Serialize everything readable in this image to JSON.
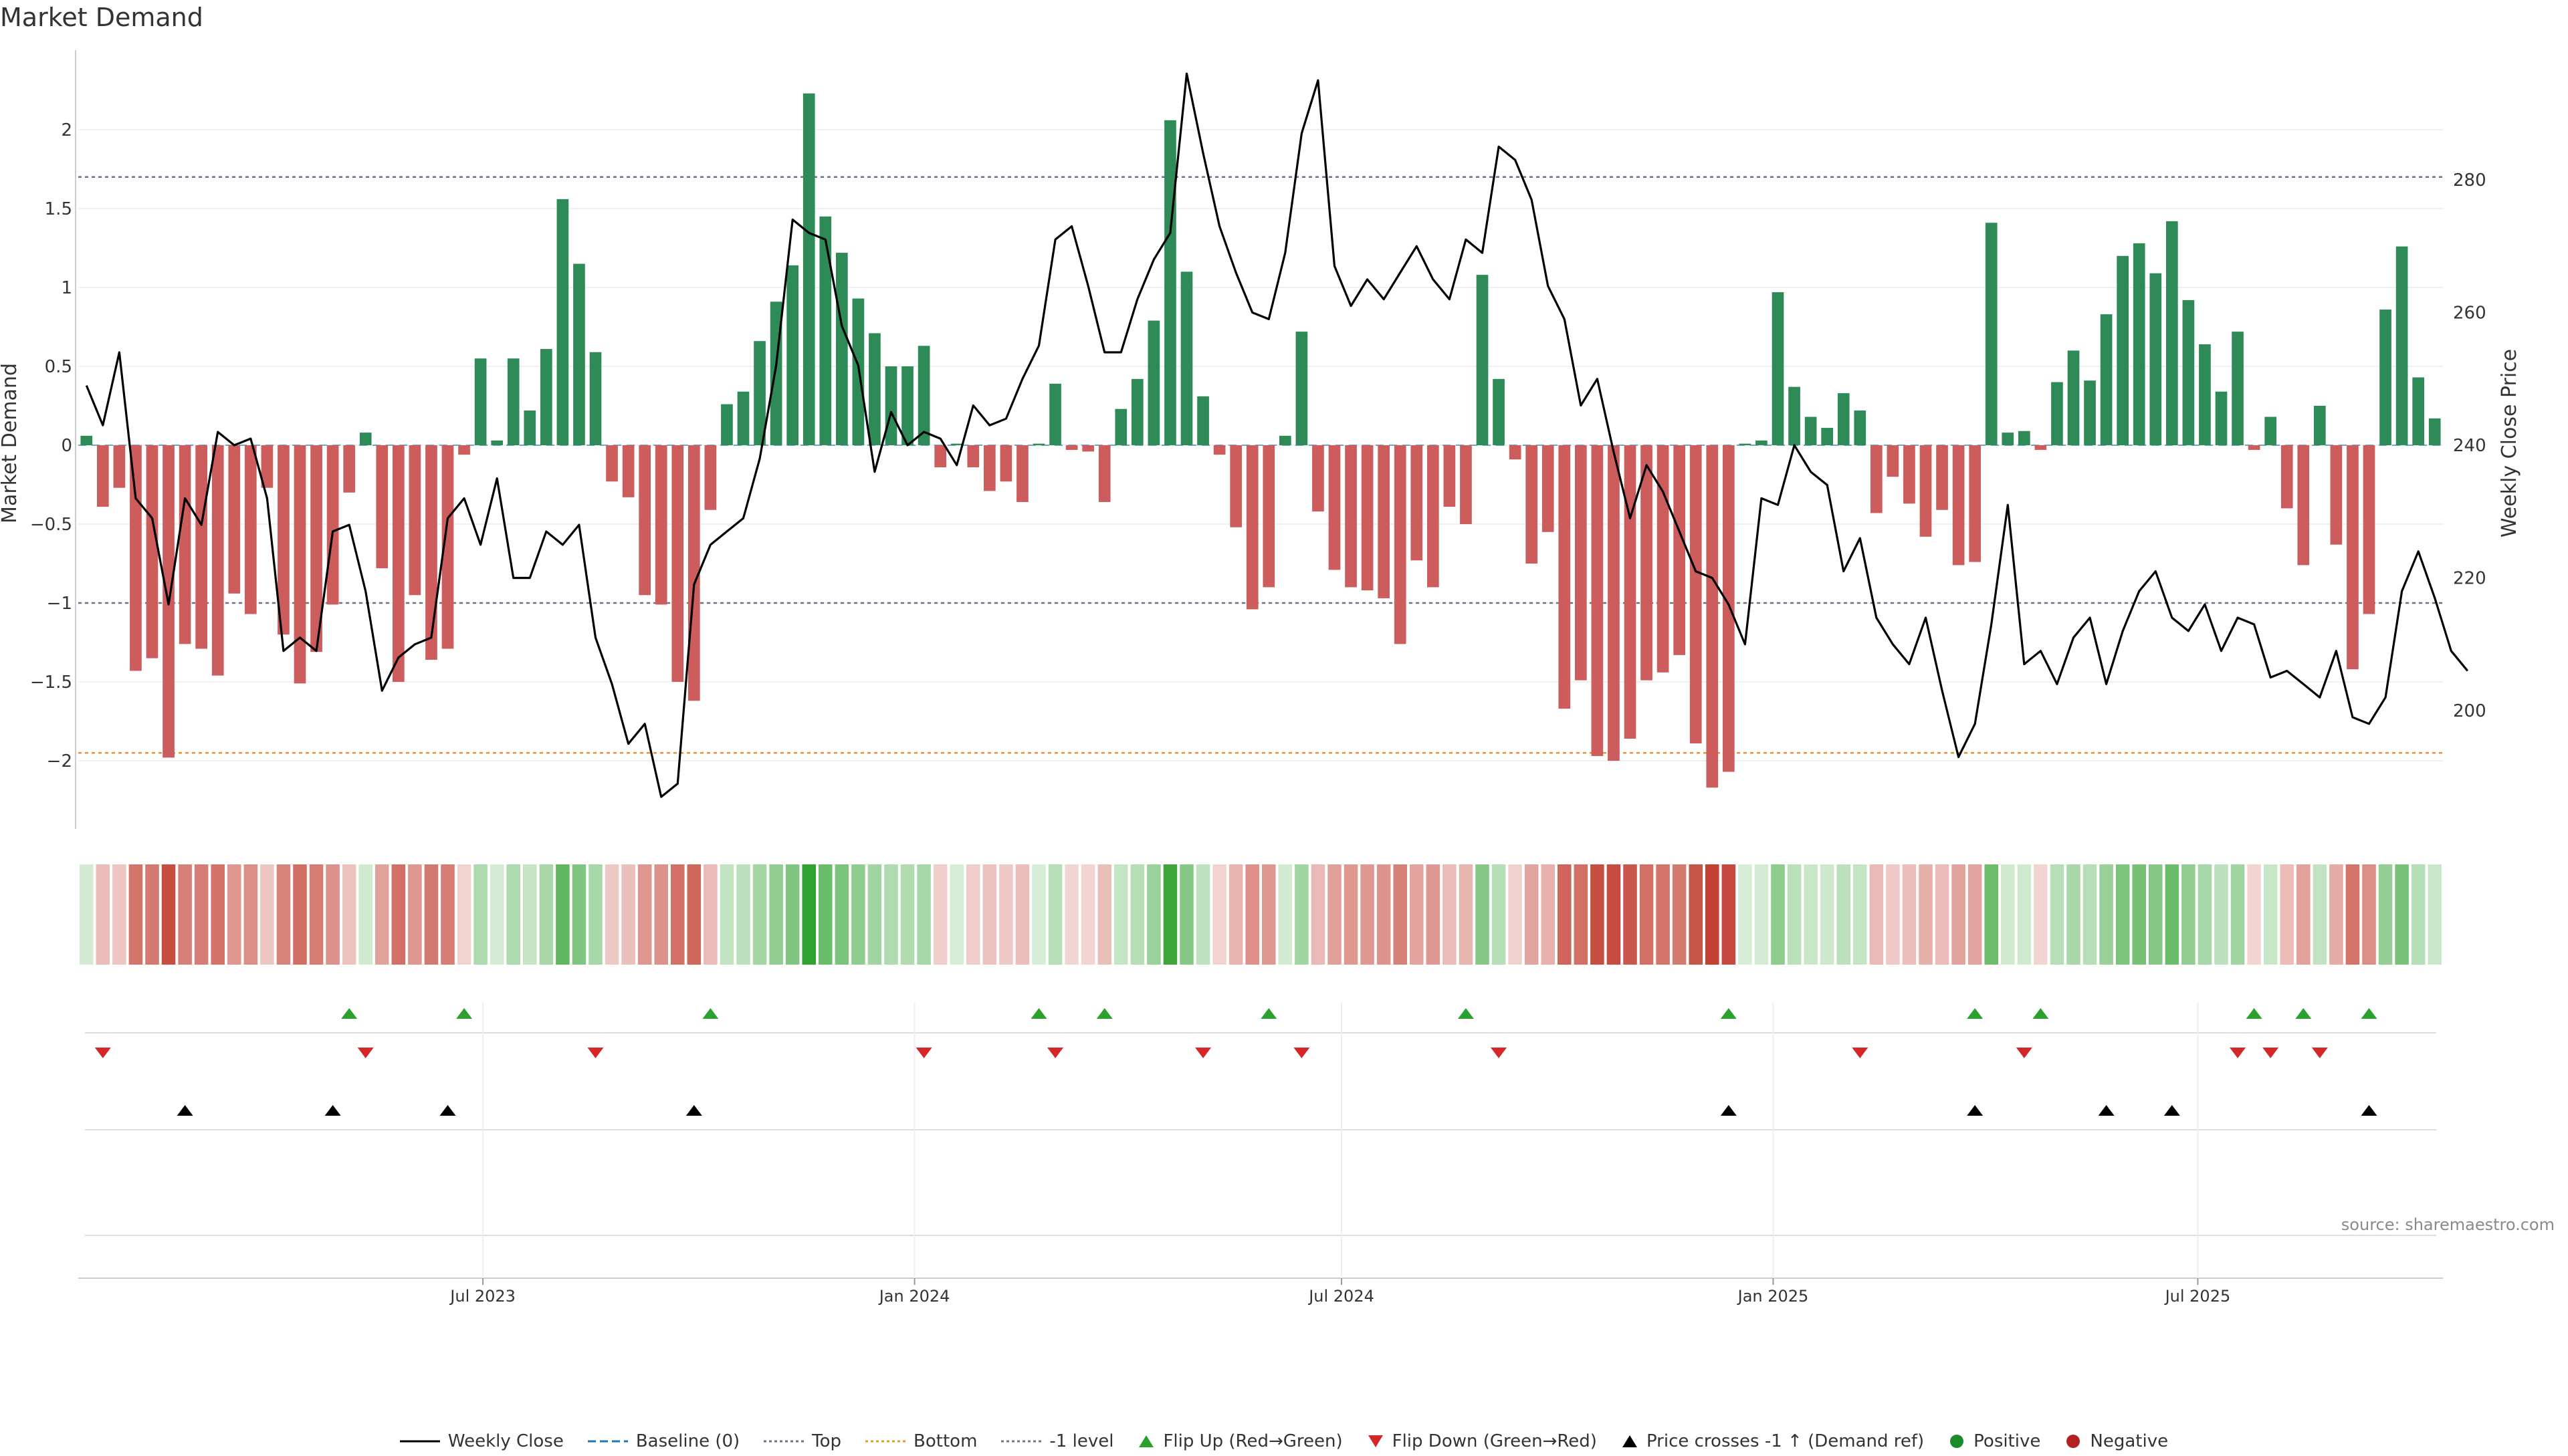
{
  "title": "Market Demand",
  "source": "source: sharemaestro.com",
  "colors": {
    "positive": "#2e8b57",
    "negative": "#cd5c5c",
    "line": "#000000",
    "top": "#6c6f8e",
    "bottom": "#e69532",
    "minus1": "#6c6f8e",
    "flip_up": "#2ca02c",
    "flip_down": "#d62728",
    "cross": "#000000"
  },
  "legend": [
    {
      "label": "Weekly Close",
      "kind": "line-solid",
      "color": "#000000"
    },
    {
      "label": "Baseline (0)",
      "kind": "line-dash",
      "color": "#1f77b4"
    },
    {
      "label": "Top",
      "kind": "line-dot",
      "color": "#6c6f8e"
    },
    {
      "label": "Bottom",
      "kind": "line-dot",
      "color": "#e69532"
    },
    {
      "label": "-1 level",
      "kind": "line-dot",
      "color": "#6c6f8e"
    },
    {
      "label": "Flip Up (Red→Green)",
      "kind": "tri-up",
      "color": "#2ca02c"
    },
    {
      "label": "Flip Down (Green→Red)",
      "kind": "tri-down",
      "color": "#d62728"
    },
    {
      "label": "Price crosses -1 ↑ (Demand ref)",
      "kind": "tri-up",
      "color": "#000000"
    },
    {
      "label": "Positive",
      "kind": "dot",
      "color": "#1a8a2a"
    },
    {
      "label": "Negative",
      "kind": "dot",
      "color": "#b22222"
    }
  ],
  "chart_data": {
    "type": "bar",
    "ylabel": "Market Demand",
    "y2label": "Weekly Close Price",
    "ylim": [
      -2.4,
      2.5
    ],
    "y2lim": [
      185,
      297
    ],
    "yticks": [
      "2",
      "1.5",
      "1",
      "0.5",
      "0",
      "−0.5",
      "−1",
      "−1.5",
      "−2"
    ],
    "y2ticks": [
      "280",
      "260",
      "240",
      "220",
      "200"
    ],
    "reference_lines": {
      "top": 1.7,
      "bottom": -1.95,
      "minus1": -1
    },
    "xticks": [
      "Jul 2023",
      "Jan 2024",
      "Jul 2024",
      "Jan 2025",
      "Jul 2025"
    ],
    "x_start": "2023-01-13",
    "x_step_days": 7,
    "series": [
      {
        "name": "Market Demand",
        "values": [
          0.06,
          -0.39,
          -0.27,
          -1.43,
          -1.35,
          -1.98,
          -1.26,
          -1.29,
          -1.46,
          -0.94,
          -1.07,
          -0.27,
          -1.2,
          -1.51,
          -1.31,
          -1.01,
          -0.3,
          0.08,
          -0.78,
          -1.5,
          -0.95,
          -1.36,
          -1.29,
          -0.06,
          0.55,
          0.03,
          0.55,
          0.22,
          0.61,
          1.56,
          1.15,
          0.59,
          -0.23,
          -0.33,
          -0.95,
          -1.01,
          -1.5,
          -1.62,
          -0.41,
          0.26,
          0.34,
          0.66,
          0.91,
          1.14,
          2.23,
          1.45,
          1.22,
          0.93,
          0.71,
          0.5,
          0.5,
          0.63,
          -0.14,
          0.01,
          -0.14,
          -0.29,
          -0.23,
          -0.36,
          0.01,
          0.39,
          -0.03,
          -0.04,
          -0.36,
          0.23,
          0.42,
          0.79,
          2.06,
          1.1,
          0.31,
          -0.06,
          -0.52,
          -1.04,
          -0.9,
          0.06,
          0.72,
          -0.42,
          -0.79,
          -0.9,
          -0.92,
          -0.97,
          -1.26,
          -0.73,
          -0.9,
          -0.39,
          -0.5,
          1.08,
          0.42,
          -0.09,
          -0.75,
          -0.55,
          -1.67,
          -1.49,
          -1.97,
          -2.0,
          -1.86,
          -1.49,
          -1.44,
          -1.33,
          -1.89,
          -2.17,
          -2.07,
          0.01,
          0.03,
          0.97,
          0.37,
          0.18,
          0.11,
          0.33,
          0.22,
          -0.43,
          -0.2,
          -0.37,
          -0.58,
          -0.41,
          -0.76,
          -0.74,
          1.41,
          0.08,
          0.09,
          -0.03,
          0.4,
          0.6,
          0.41,
          0.83,
          1.2,
          1.28,
          1.09,
          1.42,
          0.92,
          0.64,
          0.34,
          0.72,
          -0.03,
          0.18,
          -0.4,
          -0.76,
          0.25,
          -0.63,
          -1.42,
          -1.07,
          0.86,
          1.26,
          0.43,
          0.17
        ]
      },
      {
        "name": "Weekly Close",
        "values": [
          249,
          243,
          254,
          232,
          229,
          216,
          232,
          228,
          242,
          240,
          241,
          232,
          209,
          211,
          209,
          227,
          228,
          218,
          203,
          208,
          210,
          211,
          229,
          232,
          225,
          235,
          220,
          220,
          227,
          225,
          228,
          211,
          204,
          195,
          198,
          187,
          189,
          219,
          225,
          227,
          229,
          238,
          252,
          274,
          272,
          271,
          258,
          252,
          236,
          245,
          240,
          242,
          241,
          237,
          246,
          243,
          244,
          250,
          255,
          271,
          273,
          264,
          254,
          254,
          262,
          268,
          272,
          296,
          284,
          273,
          266,
          260,
          259,
          269,
          287,
          295,
          267,
          261,
          265,
          262,
          266,
          270,
          265,
          262,
          271,
          269,
          285,
          283,
          277,
          264,
          259,
          246,
          250,
          239,
          229,
          237,
          233,
          227,
          221,
          220,
          216,
          210,
          232,
          231,
          240,
          236,
          234,
          221,
          226,
          214,
          210,
          207,
          214,
          203,
          193,
          198,
          213,
          231,
          207,
          209,
          204,
          211,
          214,
          204,
          212,
          218,
          221,
          214,
          212,
          216,
          209,
          214,
          213,
          205,
          206,
          204,
          202,
          209,
          199,
          198,
          202,
          218,
          224,
          217,
          209,
          206
        ]
      }
    ],
    "flip_up_index": [
      16,
      23,
      38,
      58,
      62,
      72,
      84,
      100,
      115,
      119,
      132,
      135,
      139
    ],
    "flip_down_index": [
      1,
      17,
      31,
      51,
      59,
      68,
      74,
      86,
      108,
      118,
      131,
      133,
      136
    ],
    "cross_up_index": [
      6,
      15,
      22,
      37,
      100,
      115,
      123,
      127,
      139
    ]
  }
}
